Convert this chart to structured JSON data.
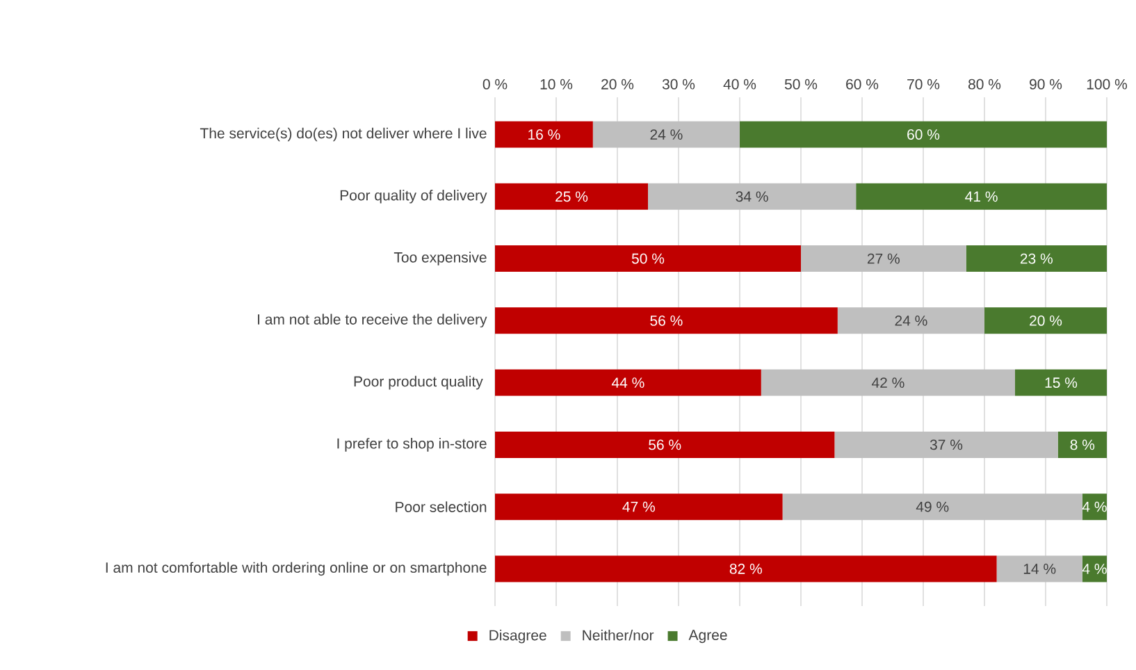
{
  "chart_data": {
    "type": "bar",
    "orientation": "horizontal",
    "stacked": true,
    "categories": [
      "The service(s) do(es) not deliver where I live",
      "Poor quality of delivery",
      "Too expensive",
      "I am not able to receive the delivery",
      "Poor product quality ",
      "I prefer to shop in-store",
      "Poor selection",
      "I am not comfortable with ordering online or on smartphone"
    ],
    "series": [
      {
        "name": "Disagree",
        "color": "#c00000",
        "values": [
          16,
          25,
          50,
          56,
          43.5,
          55.5,
          47,
          82
        ],
        "value_labels": [
          "16 %",
          "25 %",
          "50 %",
          "56 %",
          "44 %",
          "56 %",
          "47 %",
          "82 %"
        ]
      },
      {
        "name": "Neither/nor",
        "color": "#bfbfbf",
        "values": [
          24,
          34,
          27,
          24,
          41.5,
          36.5,
          49,
          14
        ],
        "value_labels": [
          "24 %",
          "34 %",
          "27 %",
          "24 %",
          "42 %",
          "37 %",
          "49 %",
          "14 %"
        ]
      },
      {
        "name": "Agree",
        "color": "#4a7a2e",
        "values": [
          60,
          41,
          23,
          20,
          15,
          8,
          4,
          4
        ],
        "value_labels": [
          "60 %",
          "41 %",
          "23 %",
          "20 %",
          "15 %",
          "8 %",
          "4 %",
          "4 %"
        ]
      }
    ],
    "xlim": [
      0,
      100
    ],
    "xticks": [
      {
        "value": 0,
        "label": "0 %"
      },
      {
        "value": 10,
        "label": "10 %"
      },
      {
        "value": 20,
        "label": "20 %"
      },
      {
        "value": 30,
        "label": "30 %"
      },
      {
        "value": 40,
        "label": "40 %"
      },
      {
        "value": 50,
        "label": "50 %"
      },
      {
        "value": 60,
        "label": "60 %"
      },
      {
        "value": 70,
        "label": "70 %"
      },
      {
        "value": 80,
        "label": "80 %"
      },
      {
        "value": 90,
        "label": "90 %"
      },
      {
        "value": 100,
        "label": "100 %"
      }
    ],
    "grid": "x",
    "legend": "bottom"
  }
}
